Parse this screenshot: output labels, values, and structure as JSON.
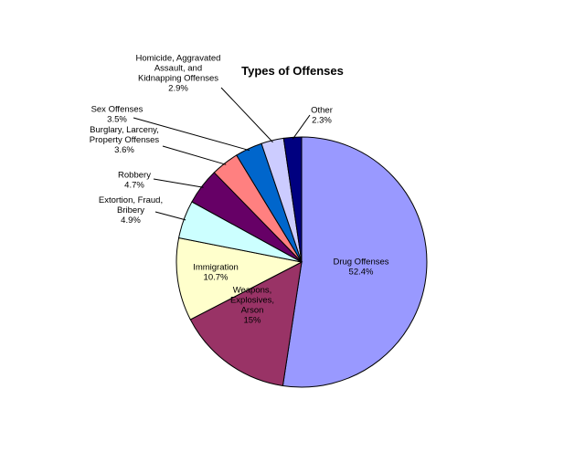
{
  "chart_data": {
    "type": "pie",
    "title": "Types of Offenses",
    "start_angle_deg": 0,
    "direction": "clockwise",
    "slices": [
      {
        "label_lines": [
          "Drug Offenses",
          "52.4%"
        ],
        "value": 52.4,
        "color": "#9999ff"
      },
      {
        "label_lines": [
          "Weapons,",
          "Explosives,",
          "Arson",
          "15%"
        ],
        "value": 15.0,
        "color": "#993366"
      },
      {
        "label_lines": [
          "Immigration",
          "10.7%"
        ],
        "value": 10.7,
        "color": "#ffffcc"
      },
      {
        "label_lines": [
          "Extortion, Fraud,",
          "Bribery",
          "4.9%"
        ],
        "value": 4.9,
        "color": "#ccffff"
      },
      {
        "label_lines": [
          "Robbery",
          "4.7%"
        ],
        "value": 4.7,
        "color": "#660066"
      },
      {
        "label_lines": [
          "Burglary, Larceny,",
          "Property Offenses",
          "3.6%"
        ],
        "value": 3.6,
        "color": "#ff8080"
      },
      {
        "label_lines": [
          "Sex Offenses",
          "3.5%"
        ],
        "value": 3.5,
        "color": "#0066cc"
      },
      {
        "label_lines": [
          "Homicide, Aggravated",
          "Assault, and",
          "Kidnapping Offenses",
          "2.9%"
        ],
        "value": 2.9,
        "color": "#ccccff"
      },
      {
        "label_lines": [
          "Other",
          "2.3%"
        ],
        "value": 2.3,
        "color": "#000080"
      }
    ]
  }
}
